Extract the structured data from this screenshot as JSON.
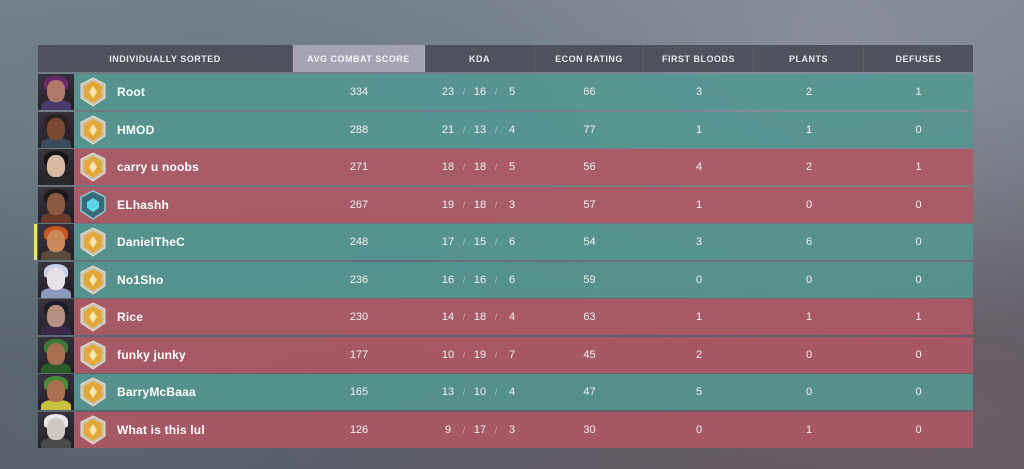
{
  "header": {
    "player": "INDIVIDUALLY SORTED",
    "acs": "AVG COMBAT SCORE",
    "kda": "KDA",
    "econ": "ECON RATING",
    "fb": "FIRST BLOODS",
    "plants": "PLANTS",
    "defuses": "DEFUSES"
  },
  "colors": {
    "ally": "#5396910",
    "enemy": "#b05864",
    "header_active": "#b9b2c3",
    "self_marker": "#e9e27a"
  },
  "players": [
    {
      "name": "Root",
      "team": "ally",
      "rank_icon": "gold-rank-icon",
      "agent_icon": "agent-portrait-icon",
      "acs": "334",
      "k": "23",
      "d": "16",
      "a": "5",
      "econ": "66",
      "fb": "3",
      "plants": "2",
      "defuses": "1"
    },
    {
      "name": "HMOD",
      "team": "ally",
      "rank_icon": "gold-rank-icon",
      "agent_icon": "agent-portrait-icon",
      "acs": "288",
      "k": "21",
      "d": "13",
      "a": "4",
      "econ": "77",
      "fb": "1",
      "plants": "1",
      "defuses": "0"
    },
    {
      "name": "carry u noobs",
      "team": "enemy",
      "rank_icon": "gold-rank-icon",
      "agent_icon": "agent-portrait-icon",
      "acs": "271",
      "k": "18",
      "d": "18",
      "a": "5",
      "econ": "56",
      "fb": "4",
      "plants": "2",
      "defuses": "1"
    },
    {
      "name": "ELhashh",
      "team": "enemy",
      "rank_icon": "platinum-rank-icon",
      "agent_icon": "agent-portrait-icon",
      "acs": "267",
      "k": "19",
      "d": "18",
      "a": "3",
      "econ": "57",
      "fb": "1",
      "plants": "0",
      "defuses": "0"
    },
    {
      "name": "DanielTheC",
      "team": "ally",
      "rank_icon": "gold-rank-icon",
      "agent_icon": "agent-portrait-icon",
      "acs": "248",
      "k": "17",
      "d": "15",
      "a": "6",
      "econ": "54",
      "fb": "3",
      "plants": "6",
      "defuses": "0"
    },
    {
      "name": "No1Sho",
      "team": "ally",
      "rank_icon": "gold-rank-icon",
      "agent_icon": "agent-portrait-icon",
      "acs": "236",
      "k": "16",
      "d": "16",
      "a": "6",
      "econ": "59",
      "fb": "0",
      "plants": "0",
      "defuses": "0"
    },
    {
      "name": "Rice",
      "team": "enemy",
      "rank_icon": "gold-rank-icon",
      "agent_icon": "agent-portrait-icon",
      "acs": "230",
      "k": "14",
      "d": "18",
      "a": "4",
      "econ": "63",
      "fb": "1",
      "plants": "1",
      "defuses": "1"
    },
    {
      "name": "funky junky",
      "team": "enemy",
      "rank_icon": "gold-rank-icon",
      "agent_icon": "agent-portrait-icon",
      "acs": "177",
      "k": "10",
      "d": "19",
      "a": "7",
      "econ": "45",
      "fb": "2",
      "plants": "0",
      "defuses": "0"
    },
    {
      "name": "BarryMcBaaa",
      "team": "ally",
      "rank_icon": "gold-rank-icon",
      "agent_icon": "agent-portrait-icon",
      "acs": "165",
      "k": "13",
      "d": "10",
      "a": "4",
      "econ": "47",
      "fb": "5",
      "plants": "0",
      "defuses": "0"
    },
    {
      "name": "What is this lul",
      "team": "enemy",
      "rank_icon": "gold-rank-icon",
      "agent_icon": "agent-portrait-icon",
      "acs": "126",
      "k": "9",
      "d": "17",
      "a": "3",
      "econ": "30",
      "fb": "0",
      "plants": "1",
      "defuses": "0"
    }
  ]
}
